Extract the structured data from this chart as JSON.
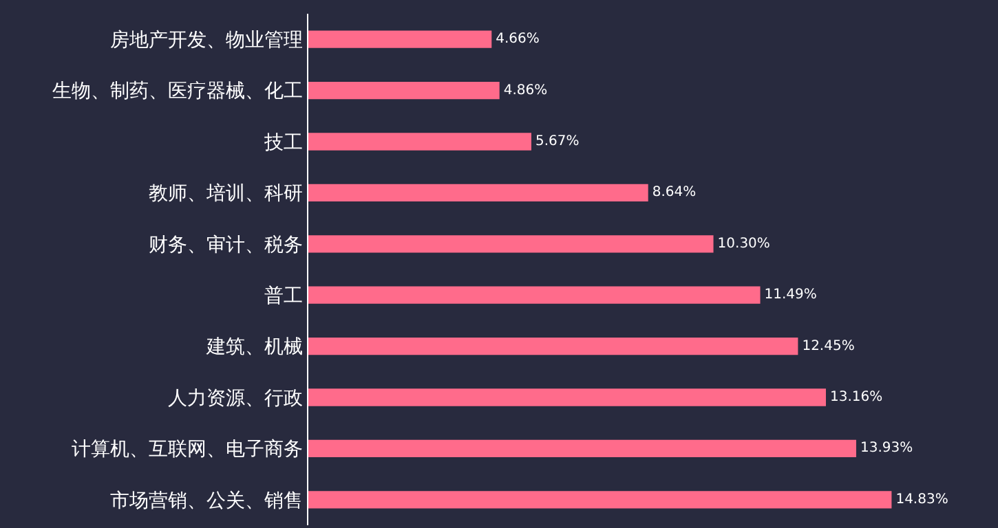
{
  "chart_data": {
    "type": "bar",
    "orientation": "horizontal",
    "categories": [
      "房地产开发、物业管理",
      "生物、制药、医疗器械、化工",
      "技工",
      "教师、培训、科研",
      "财务、审计、税务",
      "普工",
      "建筑、机械",
      "人力资源、行政",
      "计算机、互联网、电子商务",
      "市场营销、公关、销售"
    ],
    "values": [
      4.66,
      4.86,
      5.67,
      8.64,
      10.3,
      11.49,
      12.45,
      13.16,
      13.93,
      14.83
    ],
    "value_labels": [
      "4.66%",
      "4.86%",
      "5.67%",
      "8.64%",
      "10.30%",
      "11.49%",
      "12.45%",
      "13.16%",
      "13.93%",
      "14.83%"
    ],
    "color": "#ff6b8b",
    "tick_labels": "y"
  }
}
